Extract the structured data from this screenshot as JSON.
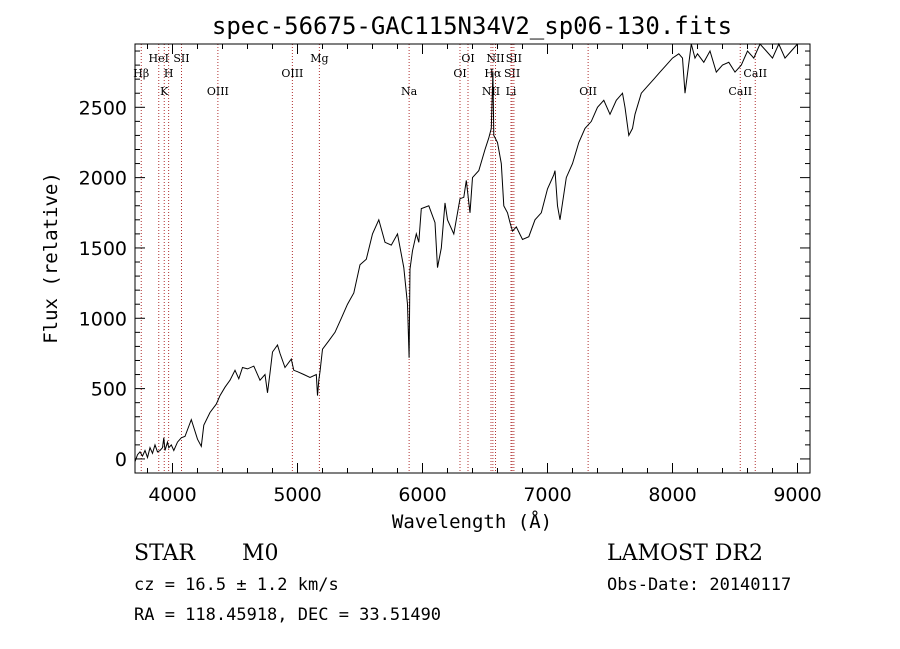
{
  "title": "spec-56675-GAC115N34V2_sp06-130.fits",
  "chart_data": {
    "type": "line",
    "xlabel": "Wavelength (Å)",
    "ylabel": "Flux (relative)",
    "xlim": [
      3700,
      9100
    ],
    "ylim": [
      -100,
      2950
    ],
    "x_ticks": [
      4000,
      5000,
      6000,
      7000,
      8000,
      9000
    ],
    "y_ticks": [
      0,
      500,
      1000,
      1500,
      2000,
      2500
    ],
    "grid": false,
    "series": [
      {
        "x": [
          3700,
          3720,
          3740,
          3760,
          3780,
          3800,
          3820,
          3840,
          3860,
          3880,
          3900,
          3920,
          3930,
          3940,
          3960,
          3970,
          3990,
          4010,
          4040,
          4070,
          4100,
          4150,
          4200,
          4230,
          4250,
          4300,
          4350,
          4380,
          4420,
          4460,
          4500,
          4530,
          4560,
          4600,
          4650,
          4700,
          4740,
          4760,
          4780,
          4800,
          4840,
          4860,
          4900,
          4950,
          4970,
          5000,
          5050,
          5100,
          5150,
          5160,
          5170,
          5180,
          5200,
          5250,
          5300,
          5350,
          5400,
          5450,
          5500,
          5550,
          5600,
          5650,
          5700,
          5750,
          5800,
          5850,
          5880,
          5893,
          5900,
          5920,
          5950,
          5970,
          5990,
          6050,
          6100,
          6120,
          6150,
          6180,
          6200,
          6250,
          6300,
          6330,
          6350,
          6380,
          6400,
          6450,
          6500,
          6530,
          6550,
          6563,
          6570,
          6600,
          6630,
          6650,
          6680,
          6700,
          6720,
          6750,
          6800,
          6850,
          6900,
          6950,
          7000,
          7050,
          7060,
          7080,
          7100,
          7150,
          7200,
          7250,
          7300,
          7350,
          7400,
          7450,
          7500,
          7550,
          7600,
          7620,
          7650,
          7680,
          7700,
          7750,
          7800,
          7850,
          7900,
          7950,
          8000,
          8050,
          8080,
          8100,
          8150,
          8180,
          8200,
          8250,
          8300,
          8350,
          8400,
          8450,
          8500,
          8550,
          8600,
          8650,
          8700,
          8750,
          8800,
          8850,
          8900,
          8950,
          9000
        ],
        "y": [
          -20,
          30,
          50,
          20,
          60,
          10,
          80,
          40,
          100,
          50,
          60,
          80,
          150,
          60,
          120,
          80,
          100,
          60,
          120,
          150,
          160,
          280,
          140,
          90,
          240,
          330,
          390,
          450,
          510,
          560,
          630,
          570,
          650,
          640,
          660,
          560,
          600,
          470,
          610,
          760,
          810,
          750,
          650,
          710,
          630,
          620,
          600,
          580,
          600,
          450,
          560,
          620,
          780,
          840,
          900,
          1000,
          1100,
          1180,
          1380,
          1420,
          1600,
          1700,
          1540,
          1520,
          1600,
          1360,
          1100,
          720,
          1350,
          1480,
          1600,
          1540,
          1780,
          1800,
          1680,
          1360,
          1500,
          1820,
          1700,
          1600,
          1850,
          1860,
          1980,
          1750,
          2000,
          2050,
          2200,
          2280,
          2350,
          2750,
          2300,
          2250,
          2100,
          1800,
          1750,
          1680,
          1620,
          1650,
          1560,
          1580,
          1700,
          1750,
          1920,
          2020,
          2050,
          1800,
          1700,
          2000,
          2100,
          2250,
          2350,
          2400,
          2500,
          2550,
          2450,
          2550,
          2600,
          2500,
          2300,
          2350,
          2450,
          2600,
          2650,
          2700,
          2750,
          2800,
          2850,
          2880,
          2850,
          2600,
          2950,
          2850,
          2880,
          2820,
          2900,
          2750,
          2800,
          2820,
          2750,
          2800,
          2900,
          2850,
          2950,
          2900,
          2850,
          2950,
          2850,
          2900,
          2950
        ]
      }
    ],
    "line_markers": [
      {
        "label": "Hβ",
        "wl": 3750,
        "row": 2
      },
      {
        "label": "HeI",
        "wl": 3890,
        "row": 1
      },
      {
        "label": "K",
        "wl": 3934,
        "row": 3
      },
      {
        "label": "H",
        "wl": 3969,
        "row": 2
      },
      {
        "label": "SII",
        "wl": 4072,
        "row": 1
      },
      {
        "label": "OIII",
        "wl": 4363,
        "row": 3
      },
      {
        "label": "OIII",
        "wl": 4959,
        "row": 2
      },
      {
        "label": "Mg",
        "wl": 5175,
        "row": 1
      },
      {
        "label": "Na",
        "wl": 5893,
        "row": 3
      },
      {
        "label": "OI",
        "wl": 6300,
        "row": 2
      },
      {
        "label": "OI",
        "wl": 6364,
        "row": 1
      },
      {
        "label": "NII",
        "wl": 6548,
        "row": 3
      },
      {
        "label": "NII",
        "wl": 6584,
        "row": 1
      },
      {
        "label": "Hα",
        "wl": 6563,
        "row": 2
      },
      {
        "label": "SII",
        "wl": 6717,
        "row": 2
      },
      {
        "label": "SII",
        "wl": 6731,
        "row": 1
      },
      {
        "label": "Li",
        "wl": 6708,
        "row": 3
      },
      {
        "label": "OII",
        "wl": 7325,
        "row": 3
      },
      {
        "label": "CaII",
        "wl": 8542,
        "row": 3
      },
      {
        "label": "CaII",
        "wl": 8662,
        "row": 2
      }
    ]
  },
  "info": {
    "class": "STAR",
    "subclass": "M0",
    "survey": "LAMOST DR2",
    "cz": "cz = 16.5 ± 1.2 km/s",
    "obs_date": "Obs-Date: 20140117",
    "radec": "RA = 118.45918, DEC =  33.51490"
  }
}
